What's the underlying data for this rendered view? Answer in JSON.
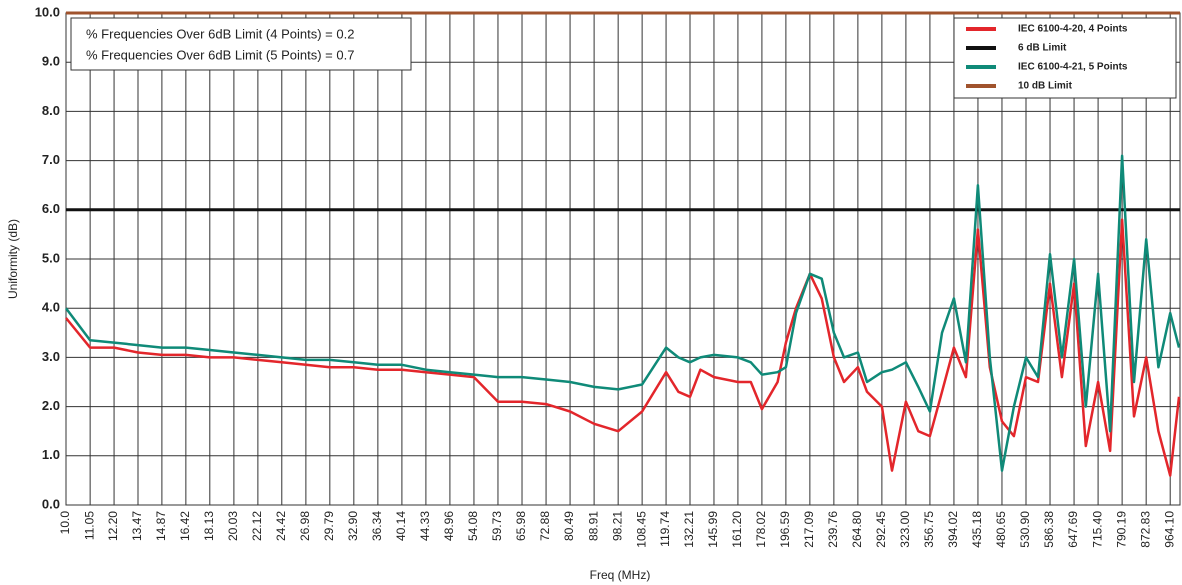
{
  "chart_data": {
    "type": "line",
    "x_label": "Freq (MHz)",
    "y_label": "Uniformity (dB)",
    "annotations": [
      "% Frequencies Over 6dB Limit (4 Points) = 0.2",
      "% Frequencies Over 6dB Limit (5 Points) = 0.7"
    ],
    "log_x": true,
    "grid": true,
    "legend": "top-right",
    "xlim": [
      10,
      1004
    ],
    "ylim": [
      0,
      10
    ],
    "yticks": [
      {
        "value": 0,
        "label": "0.0"
      },
      {
        "value": 1,
        "label": "1.0"
      },
      {
        "value": 2,
        "label": "2.0"
      },
      {
        "value": 3,
        "label": "3.0"
      },
      {
        "value": 4,
        "label": "4.0"
      },
      {
        "value": 5,
        "label": "5.0"
      },
      {
        "value": 6,
        "label": "6.0"
      },
      {
        "value": 7,
        "label": "7.0"
      },
      {
        "value": 8,
        "label": "8.0"
      },
      {
        "value": 9,
        "label": "9.0"
      },
      {
        "value": 10,
        "label": "10.0"
      }
    ],
    "xticks": [
      {
        "value": 10,
        "label": "10.0"
      },
      11.05,
      {
        "value": 12.2,
        "label": "12.20"
      },
      13.47,
      14.87,
      16.42,
      18.13,
      20.03,
      22.12,
      24.42,
      26.98,
      29.79,
      {
        "value": 32.9,
        "label": "32.90"
      },
      36.34,
      40.14,
      44.33,
      48.96,
      54.08,
      59.73,
      65.98,
      72.88,
      80.49,
      88.91,
      98.21,
      108.45,
      119.74,
      132.21,
      145.99,
      {
        "value": 161.2,
        "label": "161.20"
      },
      178.02,
      196.59,
      217.09,
      239.76,
      {
        "value": 264.8,
        "label": "264.80"
      },
      292.45,
      {
        "value": 323,
        "label": "323.00"
      },
      356.75,
      394.02,
      435.18,
      480.65,
      {
        "value": 530.9,
        "label": "530.90"
      },
      586.38,
      647.69,
      {
        "value": 715.4,
        "label": "715.40"
      },
      790.19,
      872.83,
      {
        "value": 964.1,
        "label": "964.10"
      }
    ],
    "x": [
      10,
      11.05,
      12.2,
      13.47,
      14.87,
      16.42,
      18.13,
      20.03,
      22.12,
      24.42,
      26.98,
      29.79,
      32.9,
      36.34,
      40.14,
      44.33,
      48.96,
      54.08,
      59.73,
      65.98,
      72.88,
      80.49,
      88.91,
      98.21,
      108.45,
      119.74,
      126,
      132.21,
      138,
      145.99,
      161.2,
      170,
      178.02,
      190,
      196.59,
      205,
      217.09,
      228,
      239.76,
      250,
      264.8,
      275,
      292.45,
      305,
      323,
      340,
      356.75,
      375,
      394.02,
      414,
      435.18,
      457,
      480.65,
      505,
      530.9,
      558,
      586.38,
      616,
      647.69,
      680,
      715.4,
      752,
      790.19,
      830,
      872.83,
      918,
      964.1,
      1000
    ],
    "series": [
      {
        "name": "IEC 6100-4-20, 4 Points",
        "color": "#e3262b",
        "values": [
          3.8,
          3.2,
          3.2,
          3.1,
          3.05,
          3.05,
          3.0,
          3.0,
          2.95,
          2.9,
          2.85,
          2.8,
          2.8,
          2.75,
          2.75,
          2.7,
          2.65,
          2.6,
          2.1,
          2.1,
          2.05,
          1.9,
          1.65,
          1.5,
          1.9,
          2.7,
          2.3,
          2.2,
          2.75,
          2.6,
          2.5,
          2.5,
          1.95,
          2.5,
          3.3,
          4.0,
          4.7,
          4.2,
          3.0,
          2.5,
          2.8,
          2.3,
          2.0,
          0.7,
          2.1,
          1.5,
          1.4,
          2.3,
          3.2,
          2.6,
          5.6,
          2.8,
          1.7,
          1.4,
          2.6,
          2.5,
          4.5,
          2.6,
          4.5,
          1.2,
          2.5,
          1.1,
          5.8,
          1.8,
          3.0,
          1.5,
          0.6,
          2.2
        ]
      },
      {
        "name": "6 dB Limit",
        "color": "#111111",
        "x": [
          10,
          1004
        ],
        "values": [
          6,
          6
        ]
      },
      {
        "name": "IEC 6100-4-21, 5 Points",
        "color": "#0f8a78",
        "values": [
          4.0,
          3.35,
          3.3,
          3.25,
          3.2,
          3.2,
          3.15,
          3.1,
          3.05,
          3.0,
          2.95,
          2.95,
          2.9,
          2.85,
          2.85,
          2.75,
          2.7,
          2.65,
          2.6,
          2.6,
          2.55,
          2.5,
          2.4,
          2.35,
          2.45,
          3.2,
          3.0,
          2.9,
          3.0,
          3.05,
          3.0,
          2.9,
          2.65,
          2.7,
          2.8,
          3.9,
          4.7,
          4.6,
          3.5,
          3.0,
          3.1,
          2.5,
          2.7,
          2.75,
          2.9,
          2.4,
          1.9,
          3.5,
          4.2,
          2.9,
          6.5,
          3.0,
          0.7,
          2.0,
          3.0,
          2.6,
          5.1,
          3.0,
          5.0,
          2.0,
          4.7,
          1.5,
          7.1,
          2.5,
          5.4,
          2.8,
          3.9,
          3.2
        ]
      },
      {
        "name": "10 dB Limit",
        "color": "#a0532d",
        "x": [
          10,
          1004
        ],
        "values": [
          10,
          10
        ]
      }
    ]
  }
}
